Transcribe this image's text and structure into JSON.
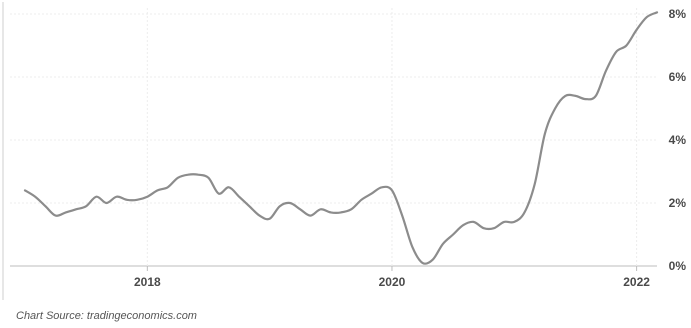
{
  "chart_data": {
    "type": "line",
    "title": "",
    "xlabel": "",
    "ylabel": "",
    "x_ticks": [
      "2018",
      "2020",
      "2022"
    ],
    "y_ticks": [
      "0%",
      "2%",
      "4%",
      "6%",
      "8%"
    ],
    "ylim": [
      0,
      8
    ],
    "xlim": [
      "2017-01",
      "2022-03"
    ],
    "grid": true,
    "legend": "none",
    "series": [
      {
        "color": "#8c8c8c",
        "x": [
          "2017-01",
          "2017-02",
          "2017-03",
          "2017-04",
          "2017-05",
          "2017-06",
          "2017-07",
          "2017-08",
          "2017-09",
          "2017-10",
          "2017-11",
          "2017-12",
          "2018-01",
          "2018-02",
          "2018-03",
          "2018-04",
          "2018-05",
          "2018-06",
          "2018-07",
          "2018-08",
          "2018-09",
          "2018-10",
          "2018-11",
          "2018-12",
          "2019-01",
          "2019-02",
          "2019-03",
          "2019-04",
          "2019-05",
          "2019-06",
          "2019-07",
          "2019-08",
          "2019-09",
          "2019-10",
          "2019-11",
          "2019-12",
          "2020-01",
          "2020-02",
          "2020-03",
          "2020-04",
          "2020-05",
          "2020-06",
          "2020-07",
          "2020-08",
          "2020-09",
          "2020-10",
          "2020-11",
          "2020-12",
          "2021-01",
          "2021-02",
          "2021-03",
          "2021-04",
          "2021-05",
          "2021-06",
          "2021-07",
          "2021-08",
          "2021-09",
          "2021-10",
          "2021-11",
          "2021-12",
          "2022-01",
          "2022-02",
          "2022-03"
        ],
        "values": [
          2.4,
          2.2,
          1.9,
          1.6,
          1.7,
          1.8,
          1.9,
          2.2,
          2.0,
          2.2,
          2.1,
          2.1,
          2.2,
          2.4,
          2.5,
          2.8,
          2.9,
          2.9,
          2.8,
          2.3,
          2.5,
          2.2,
          1.9,
          1.6,
          1.5,
          1.9,
          2.0,
          1.8,
          1.6,
          1.8,
          1.7,
          1.7,
          1.8,
          2.1,
          2.3,
          2.5,
          2.4,
          1.6,
          0.6,
          0.1,
          0.2,
          0.7,
          1.0,
          1.3,
          1.4,
          1.2,
          1.2,
          1.4,
          1.4,
          1.7,
          2.6,
          4.2,
          5.0,
          5.4,
          5.4,
          5.3,
          5.4,
          6.2,
          6.8,
          7.0,
          7.5,
          7.9,
          8.5
        ]
      }
    ]
  },
  "footer": {
    "source": "Chart Source: tradingeconomics.com"
  }
}
